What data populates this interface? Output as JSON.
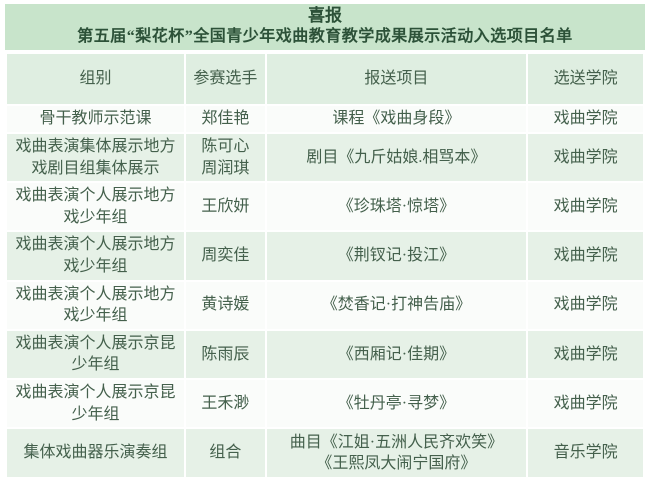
{
  "banner": {
    "title": "喜报",
    "subtitle": "第五届“梨花杯”全国青少年戏曲教育教学成果展示活动入选项目名单"
  },
  "table": {
    "columns": [
      "组别",
      "参赛选手",
      "报送项目",
      "选送学院"
    ],
    "rows": [
      {
        "group": "骨干教师示范课",
        "contestant": "郑佳艳",
        "project": "课程《戏曲身段》",
        "college": "戏曲学院"
      },
      {
        "group": "戏曲表演集体展示地方戏剧目组集体展示",
        "contestant": "陈可心\n周润琪",
        "project": "剧目《九斤姑娘.相骂本》",
        "college": "戏曲学院"
      },
      {
        "group": "戏曲表演个人展示地方戏少年组",
        "contestant": "王欣妍",
        "project": "《珍珠塔·惊塔》",
        "college": "戏曲学院"
      },
      {
        "group": "戏曲表演个人展示地方戏少年组",
        "contestant": "周奕佳",
        "project": "《荆钗记·投江》",
        "college": "戏曲学院"
      },
      {
        "group": "戏曲表演个人展示地方戏少年组",
        "contestant": "黄诗媛",
        "project": "《焚香记·打神告庙》",
        "college": "戏曲学院"
      },
      {
        "group": "戏曲表演个人展示京昆少年组",
        "contestant": "陈雨辰",
        "project": "《西厢记·佳期》",
        "college": "戏曲学院"
      },
      {
        "group": "戏曲表演个人展示京昆少年组",
        "contestant": "王禾渺",
        "project": "《牡丹亭·寻梦》",
        "college": "戏曲学院"
      },
      {
        "group": "集体戏曲器乐演奏组",
        "contestant": "组合",
        "project": "曲目《江姐·五洲人民齐欢笑》\n《王熙凤大闹宁国府》",
        "college": "音乐学院"
      }
    ]
  },
  "colors": {
    "banner_green": "#c8e4cb",
    "header_green": "#dfeee1",
    "row_green": "#e6f1e7",
    "row_white": "#fafcfa",
    "body_text_green": "#44604c",
    "title_text_green": "#2c5138"
  }
}
